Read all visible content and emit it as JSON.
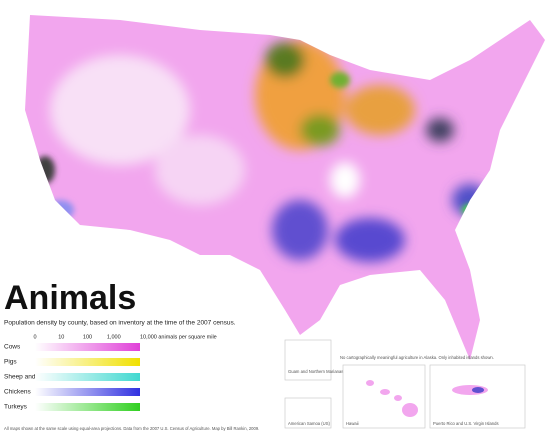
{
  "title": "Animals",
  "subtitle": "Population density by county, based on inventory at the time of the 2007 census.",
  "scale_labels": [
    "0",
    "10",
    "100",
    "1,000",
    "10,000 animals per square mile"
  ],
  "legend": [
    {
      "label": "Cows",
      "color": "#e040d8"
    },
    {
      "label": "Pigs",
      "color": "#f0e000"
    },
    {
      "label": "Sheep and Goats",
      "color": "#40d8d0"
    },
    {
      "label": "Chickens",
      "color": "#3030e0"
    },
    {
      "label": "Turkeys",
      "color": "#30d020"
    }
  ],
  "alaska_note": "No cartographically meaningful agriculture in Alaska. Only inhabited islands shown.",
  "insets": [
    "Guam and Northern Marianas",
    "American Samoa (US)",
    "Hawaii",
    "Puerto Rico and U.S. Virgin Islands"
  ],
  "footer": "All maps shown at the same scale using equal-area projections. Data from the 2007 U.S. Census of Agriculture. Map by Bill Rankin, 2009."
}
